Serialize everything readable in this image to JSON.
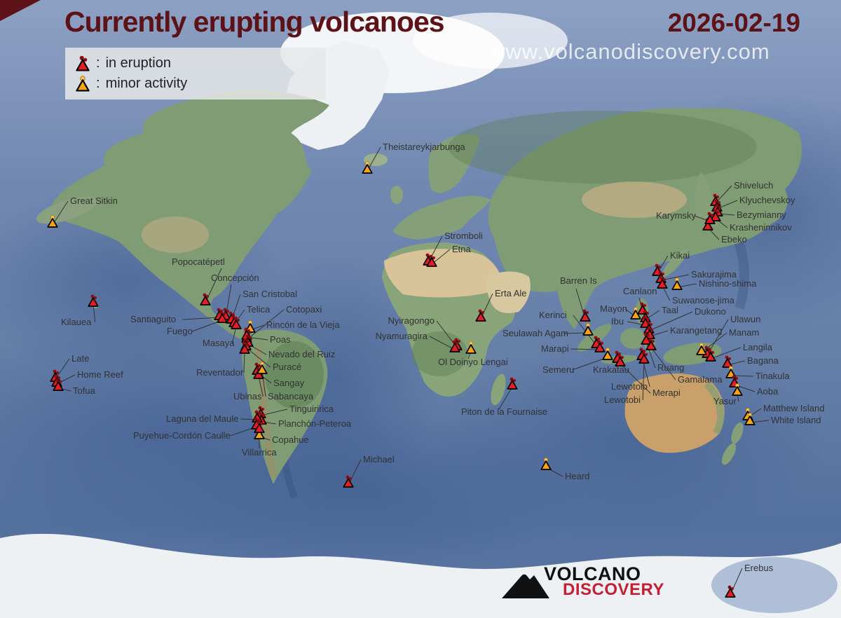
{
  "header": {
    "title": "Currently erupting volcanoes",
    "date": "2026-02-19",
    "watermark": "www.volcanodiscovery.com"
  },
  "legend": {
    "separator": ":",
    "items": [
      {
        "status": "eruption",
        "label": "in eruption"
      },
      {
        "status": "minor",
        "label": "minor activity"
      }
    ]
  },
  "logo": {
    "line1": "VOLCANO",
    "line2": "DISCOVERY"
  },
  "colors": {
    "eruption": "#ea1c23",
    "eruption_dark": "#8f0d10",
    "minor": "#f7a218",
    "minor_light": "#fbc455",
    "outline": "#000000",
    "leader": "#333333",
    "label": "#323232",
    "title": "#5c1216"
  },
  "volcanoes": [
    {
      "name": "Great Sitkin",
      "status": "minor",
      "m": [
        75,
        317
      ],
      "l": [
        100,
        291
      ],
      "a": "start"
    },
    {
      "name": "Kilauea",
      "status": "eruption",
      "m": [
        133,
        430
      ],
      "l": [
        87,
        464
      ],
      "a": "start"
    },
    {
      "name": "Late",
      "status": "eruption",
      "m": [
        79,
        537
      ],
      "l": [
        102,
        516
      ],
      "a": "start"
    },
    {
      "name": "Home Reef",
      "status": "eruption",
      "m": [
        81,
        544
      ],
      "l": [
        110,
        539
      ],
      "a": "start"
    },
    {
      "name": "Tofua",
      "status": "eruption",
      "m": [
        83,
        550
      ],
      "l": [
        104,
        562
      ],
      "a": "start"
    },
    {
      "name": "Theistareykjarbunga",
      "status": "minor",
      "m": [
        524,
        240
      ],
      "l": [
        546,
        214
      ],
      "a": "start"
    },
    {
      "name": "Stromboli",
      "status": "eruption",
      "m": [
        611,
        371
      ],
      "l": [
        634,
        341
      ],
      "a": "start"
    },
    {
      "name": "Etna",
      "status": "eruption",
      "m": [
        616,
        373
      ],
      "l": [
        645,
        360
      ],
      "a": "start"
    },
    {
      "name": "Erta Ale",
      "status": "eruption",
      "m": [
        686,
        451
      ],
      "l": [
        706,
        423
      ],
      "a": "start"
    },
    {
      "name": "Nyiragongo",
      "status": "eruption",
      "m": [
        652,
        492
      ],
      "l": [
        620,
        462
      ],
      "a": "end"
    },
    {
      "name": "Nyamuragira",
      "status": "eruption",
      "m": [
        649,
        495
      ],
      "l": [
        610,
        484
      ],
      "a": "end"
    },
    {
      "name": "Ol Doinyo Lengai",
      "status": "minor",
      "m": [
        672,
        497
      ],
      "l": [
        625,
        521
      ],
      "a": "start",
      "lead": [
        668,
        512
      ]
    },
    {
      "name": "Piton de la Fournaise",
      "status": "eruption",
      "m": [
        731,
        548
      ],
      "l": [
        658,
        592
      ],
      "a": "start",
      "lead": [
        712,
        584
      ]
    },
    {
      "name": "Michael",
      "status": "eruption",
      "m": [
        497,
        688
      ],
      "l": [
        518,
        660
      ],
      "a": "start"
    },
    {
      "name": "Heard",
      "status": "minor",
      "m": [
        779,
        663
      ],
      "l": [
        806,
        684
      ],
      "a": "start"
    },
    {
      "name": "Erebus",
      "status": "eruption",
      "m": [
        1042,
        845
      ],
      "l": [
        1062,
        815
      ],
      "a": "start"
    },
    {
      "name": "Popocatépetl",
      "status": "eruption",
      "m": [
        293,
        428
      ],
      "l": [
        245,
        378
      ],
      "a": "start",
      "lead": [
        316,
        383
      ]
    },
    {
      "name": "Concepción",
      "status": "eruption",
      "m": [
        322,
        449
      ],
      "l": [
        301,
        401
      ],
      "a": "start",
      "lead": [
        330,
        406
      ]
    },
    {
      "name": "San Cristobal",
      "status": "eruption",
      "m": [
        330,
        454
      ],
      "l": [
        346,
        424
      ],
      "a": "start"
    },
    {
      "name": "Telica",
      "status": "eruption",
      "m": [
        334,
        459
      ],
      "l": [
        352,
        446
      ],
      "a": "start"
    },
    {
      "name": "Santiaguito",
      "status": "eruption",
      "m": [
        313,
        449
      ],
      "l": [
        186,
        460
      ],
      "a": "start"
    },
    {
      "name": "Fuego",
      "status": "eruption",
      "m": [
        317,
        453
      ],
      "l": [
        238,
        477
      ],
      "a": "start"
    },
    {
      "name": "Masaya",
      "status": "eruption",
      "m": [
        337,
        462
      ],
      "l": [
        289,
        494
      ],
      "a": "start"
    },
    {
      "name": "Rincón de la Vieja",
      "status": "minor",
      "m": [
        357,
        467
      ],
      "l": [
        380,
        468
      ],
      "a": "start"
    },
    {
      "name": "Cotopaxi",
      "status": "eruption",
      "m": [
        352,
        481
      ],
      "l": [
        408,
        446
      ],
      "a": "start"
    },
    {
      "name": "Poas",
      "status": "eruption",
      "m": [
        352,
        477
      ],
      "l": [
        385,
        489
      ],
      "a": "start"
    },
    {
      "name": "Nevado del Ruiz",
      "status": "eruption",
      "m": [
        354,
        487
      ],
      "l": [
        383,
        510
      ],
      "a": "start"
    },
    {
      "name": "Puracé",
      "status": "eruption",
      "m": [
        351,
        492
      ],
      "l": [
        389,
        528
      ],
      "a": "start"
    },
    {
      "name": "Reventador",
      "status": "eruption",
      "m": [
        349,
        497
      ],
      "l": [
        280,
        536
      ],
      "a": "start"
    },
    {
      "name": "Sangay",
      "status": "eruption",
      "m": [
        367,
        527
      ],
      "l": [
        390,
        551
      ],
      "a": "start"
    },
    {
      "name": "Ubinas",
      "status": "eruption",
      "m": [
        369,
        533
      ],
      "l": [
        333,
        570
      ],
      "a": "start"
    },
    {
      "name": "Sabancaya",
      "status": "minor",
      "m": [
        374,
        526
      ],
      "l": [
        382,
        570
      ],
      "a": "start"
    },
    {
      "name": "Tinguiririca",
      "status": "eruption",
      "m": [
        372,
        589
      ],
      "l": [
        413,
        588
      ],
      "a": "start"
    },
    {
      "name": "Planchón-Peteroa",
      "status": "eruption",
      "m": [
        373,
        598
      ],
      "l": [
        397,
        609
      ],
      "a": "start"
    },
    {
      "name": "Laguna del Maule",
      "status": "eruption",
      "m": [
        367,
        595
      ],
      "l": [
        237,
        602
      ],
      "a": "start"
    },
    {
      "name": "Puyehue-Cordón Caulle",
      "status": "eruption",
      "m": [
        366,
        605
      ],
      "l": [
        190,
        626
      ],
      "a": "start"
    },
    {
      "name": "Copahue",
      "status": "minor",
      "m": [
        370,
        619
      ],
      "l": [
        388,
        632
      ],
      "a": "start"
    },
    {
      "name": "Villarrica",
      "status": "eruption",
      "m": [
        370,
        610
      ],
      "l": [
        345,
        650
      ],
      "a": "start",
      "lead": [
        370,
        640
      ]
    },
    {
      "name": "Shiveluch",
      "status": "eruption",
      "m": [
        1021,
        286
      ],
      "l": [
        1047,
        269
      ],
      "a": "start"
    },
    {
      "name": "Klyuchevskoy",
      "status": "eruption",
      "m": [
        1023,
        294
      ],
      "l": [
        1055,
        290
      ],
      "a": "start"
    },
    {
      "name": "Bezymianny",
      "status": "eruption",
      "m": [
        1024,
        301
      ],
      "l": [
        1051,
        311
      ],
      "a": "start"
    },
    {
      "name": "Krasheninnikov",
      "status": "eruption",
      "m": [
        1021,
        308
      ],
      "l": [
        1041,
        329
      ],
      "a": "start"
    },
    {
      "name": "Ebeko",
      "status": "eruption",
      "m": [
        1010,
        321
      ],
      "l": [
        1029,
        346
      ],
      "a": "start"
    },
    {
      "name": "Karymsky",
      "status": "eruption",
      "m": [
        1013,
        312
      ],
      "l": [
        936,
        312
      ],
      "a": "start"
    },
    {
      "name": "Kikai",
      "status": "eruption",
      "m": [
        938,
        386
      ],
      "l": [
        956,
        369
      ],
      "a": "start"
    },
    {
      "name": "Sakurajima",
      "status": "eruption",
      "m": [
        943,
        396
      ],
      "l": [
        986,
        396
      ],
      "a": "start"
    },
    {
      "name": "Nishino-shima",
      "status": "minor",
      "m": [
        966,
        406
      ],
      "l": [
        997,
        409
      ],
      "a": "start"
    },
    {
      "name": "Suwanose-jima",
      "status": "eruption",
      "m": [
        945,
        404
      ],
      "l": [
        959,
        433
      ],
      "a": "start"
    },
    {
      "name": "Canlaon",
      "status": "eruption",
      "m": [
        917,
        441
      ],
      "l": [
        889,
        420
      ],
      "a": "start",
      "lead": [
        912,
        425
      ]
    },
    {
      "name": "Mayon",
      "status": "minor",
      "m": [
        907,
        448
      ],
      "l": [
        856,
        445
      ],
      "a": "start"
    },
    {
      "name": "Taal",
      "status": "eruption",
      "m": [
        921,
        452
      ],
      "l": [
        944,
        447
      ],
      "a": "start"
    },
    {
      "name": "Ibu",
      "status": "eruption",
      "m": [
        921,
        460
      ],
      "l": [
        872,
        463
      ],
      "a": "start"
    },
    {
      "name": "Dukono",
      "status": "eruption",
      "m": [
        926,
        468
      ],
      "l": [
        991,
        449
      ],
      "a": "start"
    },
    {
      "name": "Karangetang",
      "status": "eruption",
      "m": [
        927,
        476
      ],
      "l": [
        956,
        476
      ],
      "a": "start"
    },
    {
      "name": "Barren Is",
      "status": "eruption",
      "m": [
        835,
        451
      ],
      "l": [
        799,
        405
      ],
      "a": "start",
      "lead": [
        822,
        412
      ]
    },
    {
      "name": "Seulawah Agam",
      "status": "minor",
      "m": [
        839,
        471
      ],
      "l": [
        717,
        480
      ],
      "a": "start"
    },
    {
      "name": "Kerinci",
      "status": "eruption",
      "m": [
        851,
        489
      ],
      "l": [
        769,
        454
      ],
      "a": "start"
    },
    {
      "name": "Marapi",
      "status": "eruption",
      "m": [
        856,
        495
      ],
      "l": [
        772,
        502
      ],
      "a": "start"
    },
    {
      "name": "Semeru",
      "status": "minor",
      "m": [
        867,
        506
      ],
      "l": [
        774,
        532
      ],
      "a": "start"
    },
    {
      "name": "Krakatau",
      "status": "eruption",
      "m": [
        881,
        510
      ],
      "l": [
        846,
        532
      ],
      "a": "start",
      "lead": [
        880,
        524
      ]
    },
    {
      "name": "Lewotolo",
      "status": "eruption",
      "m": [
        916,
        506
      ],
      "l": [
        872,
        556
      ],
      "a": "start"
    },
    {
      "name": "Lewotobi",
      "status": "eruption",
      "m": [
        919,
        511
      ],
      "l": [
        862,
        575
      ],
      "a": "start"
    },
    {
      "name": "Merapi",
      "status": "eruption",
      "m": [
        885,
        515
      ],
      "l": [
        931,
        565
      ],
      "a": "start"
    },
    {
      "name": "Ruang",
      "status": "eruption",
      "m": [
        922,
        484
      ],
      "l": [
        938,
        529
      ],
      "a": "start"
    },
    {
      "name": "Gamalama",
      "status": "eruption",
      "m": [
        929,
        492
      ],
      "l": [
        967,
        546
      ],
      "a": "start"
    },
    {
      "name": "Ulawun",
      "status": "eruption",
      "m": [
        1009,
        503
      ],
      "l": [
        1042,
        460
      ],
      "a": "start"
    },
    {
      "name": "Manam",
      "status": "minor",
      "m": [
        1001,
        499
      ],
      "l": [
        1040,
        479
      ],
      "a": "start"
    },
    {
      "name": "Langila",
      "status": "eruption",
      "m": [
        1014,
        508
      ],
      "l": [
        1060,
        500
      ],
      "a": "start"
    },
    {
      "name": "Bagana",
      "status": "eruption",
      "m": [
        1038,
        517
      ],
      "l": [
        1066,
        519
      ],
      "a": "start"
    },
    {
      "name": "Tinakula",
      "status": "minor",
      "m": [
        1043,
        532
      ],
      "l": [
        1078,
        541
      ],
      "a": "start"
    },
    {
      "name": "Aoba",
      "status": "eruption",
      "m": [
        1048,
        545
      ],
      "l": [
        1080,
        563
      ],
      "a": "start"
    },
    {
      "name": "Yasur",
      "status": "minor",
      "m": [
        1052,
        557
      ],
      "l": [
        1018,
        577
      ],
      "a": "start"
    },
    {
      "name": "Matthew Island",
      "status": "minor",
      "m": [
        1067,
        592
      ],
      "l": [
        1089,
        587
      ],
      "a": "start"
    },
    {
      "name": "White Island",
      "status": "minor",
      "m": [
        1070,
        599
      ],
      "l": [
        1100,
        604
      ],
      "a": "start"
    }
  ]
}
